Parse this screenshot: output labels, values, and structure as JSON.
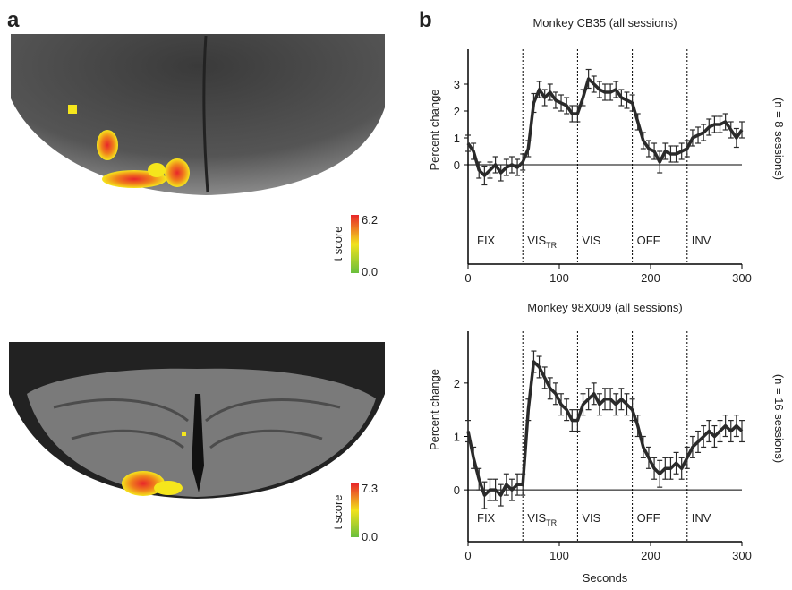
{
  "panel_labels": [
    "a",
    "b"
  ],
  "brain_maps": [
    {
      "colorbar_label": "t score",
      "colorbar_max": "6.2",
      "colorbar_min": "0.0"
    },
    {
      "colorbar_label": "t score",
      "colorbar_max": "7.3",
      "colorbar_min": "0.0"
    }
  ],
  "chart_data": [
    {
      "type": "line",
      "title": "Monkey CB35 (all sessions)",
      "y_label": "Percent change",
      "side_label": "(n = 8 sessions)",
      "color": "#2a2a2a",
      "x": [
        0,
        6,
        12,
        18,
        24,
        30,
        36,
        42,
        48,
        54,
        60,
        66,
        72,
        78,
        84,
        90,
        96,
        102,
        108,
        114,
        120,
        126,
        132,
        138,
        144,
        150,
        156,
        162,
        168,
        174,
        180,
        186,
        192,
        198,
        204,
        210,
        216,
        222,
        228,
        234,
        240,
        246,
        252,
        258,
        264,
        270,
        276,
        282,
        288,
        294,
        300
      ],
      "values": [
        0.8,
        0.5,
        -0.2,
        -0.4,
        -0.2,
        0.0,
        -0.3,
        -0.1,
        0.0,
        -0.1,
        0.1,
        0.6,
        2.3,
        2.8,
        2.5,
        2.7,
        2.4,
        2.3,
        2.2,
        1.9,
        1.9,
        2.5,
        3.2,
        3.0,
        2.8,
        2.7,
        2.7,
        2.8,
        2.5,
        2.4,
        2.3,
        1.6,
        0.9,
        0.6,
        0.5,
        0.1,
        0.5,
        0.4,
        0.4,
        0.5,
        0.6,
        1.0,
        1.1,
        1.2,
        1.4,
        1.5,
        1.5,
        1.6,
        1.3,
        1.0,
        1.3
      ],
      "errors": [
        0.3,
        0.3,
        0.3,
        0.35,
        0.3,
        0.3,
        0.3,
        0.3,
        0.3,
        0.3,
        0.3,
        0.3,
        0.35,
        0.3,
        0.3,
        0.3,
        0.3,
        0.3,
        0.3,
        0.3,
        0.3,
        0.3,
        0.35,
        0.3,
        0.3,
        0.3,
        0.3,
        0.3,
        0.3,
        0.3,
        0.3,
        0.3,
        0.3,
        0.3,
        0.3,
        0.4,
        0.3,
        0.3,
        0.3,
        0.3,
        0.3,
        0.3,
        0.3,
        0.3,
        0.3,
        0.3,
        0.3,
        0.3,
        0.3,
        0.35,
        0.3
      ],
      "xlim": [
        0,
        300
      ],
      "xticks": [
        0,
        100,
        200,
        300
      ],
      "ylim": [
        -3.7,
        4.3
      ],
      "yticks": [
        0,
        1,
        2,
        3
      ],
      "vlines": [
        60,
        120,
        180,
        240
      ],
      "epochs": [
        {
          "label": "FIX",
          "color": "#222222"
        },
        {
          "label": "VIS",
          "sub": "TR",
          "color": "#8c8c8c"
        },
        {
          "label": "VIS",
          "color": "#a0a0a0"
        },
        {
          "label": "OFF",
          "color": "#1f77b4"
        },
        {
          "label": "INV",
          "color": "#e0602a"
        }
      ]
    },
    {
      "type": "line",
      "title": "Monkey 98X009 (all sessions)",
      "y_label": "Percent change",
      "x_label": "Seconds",
      "side_label": "(n = 16 sessions)",
      "color": "#2a2a2a",
      "x": [
        0,
        6,
        12,
        18,
        24,
        30,
        36,
        42,
        48,
        54,
        60,
        66,
        72,
        78,
        84,
        90,
        96,
        102,
        108,
        114,
        120,
        126,
        132,
        138,
        144,
        150,
        156,
        162,
        168,
        174,
        180,
        186,
        192,
        198,
        204,
        210,
        216,
        222,
        228,
        234,
        240,
        246,
        252,
        258,
        264,
        270,
        276,
        282,
        288,
        294,
        300
      ],
      "values": [
        1.1,
        0.6,
        0.2,
        -0.1,
        0.0,
        0.0,
        -0.1,
        0.1,
        0.0,
        0.1,
        0.1,
        1.5,
        2.4,
        2.3,
        2.1,
        1.9,
        1.8,
        1.6,
        1.5,
        1.3,
        1.3,
        1.6,
        1.7,
        1.8,
        1.6,
        1.7,
        1.7,
        1.6,
        1.7,
        1.6,
        1.5,
        1.2,
        0.8,
        0.6,
        0.4,
        0.3,
        0.4,
        0.4,
        0.5,
        0.4,
        0.6,
        0.8,
        0.9,
        1.0,
        1.1,
        1.0,
        1.1,
        1.2,
        1.1,
        1.2,
        1.1
      ],
      "errors": [
        0.2,
        0.2,
        0.2,
        0.25,
        0.2,
        0.2,
        0.2,
        0.2,
        0.2,
        0.2,
        0.2,
        0.2,
        0.2,
        0.2,
        0.2,
        0.2,
        0.2,
        0.2,
        0.2,
        0.2,
        0.2,
        0.2,
        0.2,
        0.2,
        0.2,
        0.2,
        0.2,
        0.2,
        0.2,
        0.2,
        0.2,
        0.2,
        0.2,
        0.2,
        0.2,
        0.25,
        0.2,
        0.2,
        0.2,
        0.2,
        0.2,
        0.2,
        0.2,
        0.2,
        0.2,
        0.2,
        0.2,
        0.2,
        0.2,
        0.2,
        0.2
      ],
      "xlim": [
        0,
        300
      ],
      "xticks": [
        0,
        100,
        200,
        300
      ],
      "ylim": [
        -0.97,
        2.97
      ],
      "yticks": [
        0,
        1,
        2
      ],
      "vlines": [
        60,
        120,
        180,
        240
      ],
      "epochs": [
        {
          "label": "FIX",
          "color": "#222222"
        },
        {
          "label": "VIS",
          "sub": "TR",
          "color": "#8c8c8c"
        },
        {
          "label": "VIS",
          "color": "#a0a0a0"
        },
        {
          "label": "OFF",
          "color": "#1f77b4"
        },
        {
          "label": "INV",
          "color": "#e0602a"
        }
      ]
    }
  ]
}
